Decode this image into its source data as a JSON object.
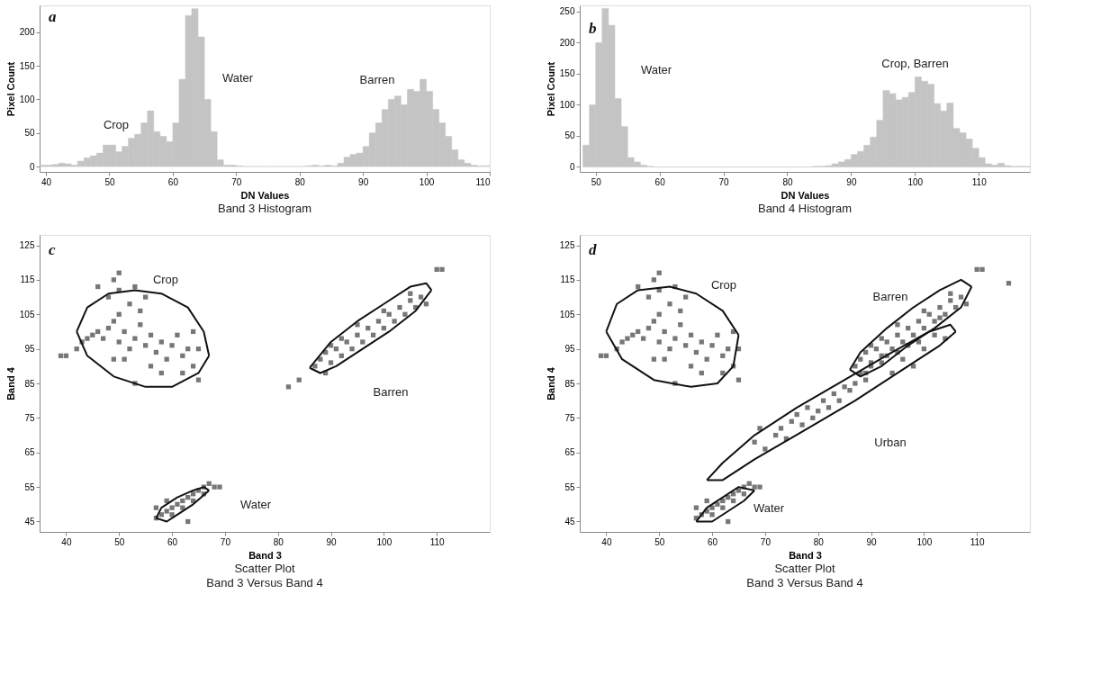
{
  "chart_data": [
    {
      "type": "histogram",
      "title": "Band 3 Histogram",
      "xlabel": "DN Values",
      "ylabel": "Pixel Count",
      "color": "#c4c4c4",
      "grid": false,
      "bins": [
        39,
        40,
        41,
        42,
        43,
        44,
        45,
        46,
        47,
        48,
        49,
        50,
        51,
        52,
        53,
        54,
        55,
        56,
        57,
        58,
        59,
        60,
        61,
        62,
        63,
        64,
        65,
        66,
        67,
        68,
        69,
        70,
        71,
        72,
        73,
        74,
        75,
        76,
        77,
        78,
        79,
        80,
        81,
        82,
        83,
        84,
        85,
        86,
        87,
        88,
        89,
        90,
        91,
        92,
        93,
        94,
        95,
        96,
        97,
        98,
        99,
        100,
        101,
        102,
        103,
        104,
        105,
        106,
        107,
        108,
        109,
        110
      ],
      "values": [
        2,
        2,
        3,
        5,
        4,
        2,
        8,
        13,
        16,
        20,
        32,
        32,
        22,
        30,
        42,
        48,
        65,
        83,
        52,
        45,
        37,
        65,
        130,
        225,
        235,
        193,
        100,
        52,
        10,
        2,
        2,
        1,
        0,
        0,
        0,
        0,
        0,
        0,
        0,
        0,
        0,
        0,
        1,
        2,
        1,
        2,
        1,
        5,
        14,
        18,
        20,
        30,
        50,
        65,
        85,
        100,
        105,
        92,
        115,
        112,
        130,
        112,
        85,
        65,
        45,
        25,
        10,
        5,
        2,
        1,
        1
      ],
      "xlim": [
        39,
        110
      ],
      "ylim": [
        -8,
        240
      ],
      "xticks": [
        40,
        50,
        60,
        70,
        80,
        90,
        100,
        110
      ],
      "yticks": [
        0,
        50,
        100,
        150,
        200
      ],
      "annotations": [
        "a",
        "Crop",
        "Water",
        "Barren"
      ]
    },
    {
      "type": "histogram",
      "title": "Band 4 Histogram",
      "xlabel": "DN Values",
      "ylabel": "Pixel Count",
      "color": "#c4c4c4",
      "grid": false,
      "bins": [
        48,
        49,
        50,
        51,
        52,
        53,
        54,
        55,
        56,
        57,
        58,
        59,
        60,
        61,
        62,
        63,
        64,
        65,
        66,
        67,
        68,
        69,
        70,
        71,
        72,
        73,
        74,
        75,
        76,
        77,
        78,
        79,
        80,
        81,
        82,
        83,
        84,
        85,
        86,
        87,
        88,
        89,
        90,
        91,
        92,
        93,
        94,
        95,
        96,
        97,
        98,
        99,
        100,
        101,
        102,
        103,
        104,
        105,
        106,
        107,
        108,
        109,
        110,
        111,
        112,
        113,
        114,
        115,
        116,
        117,
        118
      ],
      "values": [
        35,
        100,
        200,
        255,
        228,
        110,
        65,
        15,
        8,
        3,
        1,
        0,
        0,
        0,
        0,
        0,
        0,
        0,
        0,
        0,
        0,
        0,
        0,
        0,
        0,
        0,
        0,
        0,
        0,
        0,
        0,
        0,
        0,
        0,
        0,
        0,
        1,
        1,
        2,
        5,
        8,
        12,
        20,
        25,
        35,
        48,
        75,
        123,
        118,
        108,
        112,
        120,
        145,
        138,
        133,
        102,
        90,
        103,
        62,
        55,
        45,
        30,
        15,
        5,
        3,
        6,
        2,
        1,
        1,
        1
      ],
      "xlim": [
        47.5,
        118
      ],
      "ylim": [
        -8,
        260
      ],
      "xticks": [
        50,
        60,
        70,
        80,
        90,
        100,
        110
      ],
      "yticks": [
        0,
        50,
        100,
        150,
        200,
        250
      ],
      "annotations": [
        "b",
        "Water",
        "Crop, Barren"
      ]
    },
    {
      "type": "scatter",
      "title": "Scatter Plot",
      "subtitle": "Band 3 Versus Band 4",
      "xlabel": "Band 3",
      "ylabel": "Band 4",
      "grid": false,
      "xlim": [
        35,
        120
      ],
      "ylim": [
        42,
        128
      ],
      "xticks": [
        40,
        50,
        60,
        70,
        80,
        90,
        100,
        110
      ],
      "yticks": [
        45,
        55,
        65,
        75,
        85,
        95,
        105,
        115,
        125
      ],
      "series": [
        {
          "type": "scatter",
          "marker": "square",
          "color": "#777777",
          "x": [
            39,
            40,
            42,
            43,
            44,
            45,
            46,
            47,
            48,
            49,
            50,
            50,
            51,
            52,
            53,
            54,
            55,
            56,
            57,
            58,
            59,
            60,
            61,
            62,
            63,
            64,
            65,
            64,
            56,
            53,
            51,
            49,
            48,
            50,
            50,
            49,
            52,
            54,
            55,
            46,
            53,
            58,
            62,
            65,
            87,
            88,
            89,
            89,
            90,
            91,
            92,
            93,
            94,
            95,
            96,
            97,
            98,
            99,
            100,
            101,
            102,
            103,
            104,
            105,
            106,
            107,
            108,
            105,
            100,
            95,
            92,
            90,
            82,
            84,
            110,
            111,
            57,
            58,
            59,
            60,
            60,
            61,
            62,
            62,
            63,
            64,
            64,
            65,
            66,
            66,
            67,
            68,
            69,
            63,
            57,
            59
          ],
          "values": [
            93,
            93,
            95,
            97,
            98,
            99,
            100,
            98,
            101,
            103,
            105,
            97,
            100,
            95,
            98,
            102,
            96,
            99,
            94,
            97,
            92,
            96,
            99,
            93,
            95,
            90,
            95,
            100,
            90,
            85,
            92,
            92,
            110,
            112,
            117,
            115,
            108,
            106,
            110,
            113,
            113,
            88,
            88,
            86,
            90,
            92,
            88,
            94,
            91,
            95,
            93,
            97,
            95,
            99,
            97,
            101,
            99,
            103,
            101,
            105,
            103,
            107,
            105,
            109,
            107,
            110,
            108,
            111,
            106,
            102,
            98,
            96,
            84,
            86,
            118,
            118,
            46,
            47,
            48,
            47,
            49,
            50,
            49,
            51,
            52,
            51,
            53,
            54,
            53,
            55,
            56,
            55,
            55,
            45,
            49,
            51
          ]
        },
        {
          "type": "line",
          "color": "#111111",
          "x": [
            42,
            44,
            48,
            53,
            58,
            63,
            66,
            67
          ],
          "values": [
            100,
            107,
            111,
            112,
            111,
            107,
            100,
            93
          ]
        },
        {
          "type": "line",
          "color": "#111111",
          "x": [
            42,
            44,
            49,
            55,
            60,
            65,
            67
          ],
          "values": [
            100,
            93,
            87,
            84,
            84,
            88,
            93
          ]
        },
        {
          "type": "line",
          "color": "#111111",
          "x": [
            86,
            90,
            95,
            100,
            105,
            108,
            109
          ],
          "values": [
            89.5,
            97,
            103,
            108,
            113,
            114,
            112
          ]
        },
        {
          "type": "line",
          "color": "#111111",
          "x": [
            86,
            88,
            91,
            96,
            101,
            106,
            109
          ],
          "values": [
            89.5,
            88,
            90,
            95,
            100,
            106,
            112
          ]
        },
        {
          "type": "line",
          "color": "#111111",
          "x": [
            57,
            58,
            61,
            64,
            66,
            67
          ],
          "values": [
            46,
            49,
            52,
            54,
            55,
            54
          ]
        },
        {
          "type": "line",
          "color": "#111111",
          "x": [
            57,
            59,
            61,
            64,
            67
          ],
          "values": [
            46,
            45,
            47,
            50,
            54
          ]
        }
      ],
      "annotations": [
        "c",
        "Crop",
        "Barren",
        "Water"
      ]
    },
    {
      "type": "scatter",
      "title": "Scatter Plot",
      "subtitle": "Band 3 Versus Band 4",
      "xlabel": "Band 3",
      "ylabel": "Band 4",
      "grid": false,
      "xlim": [
        35,
        120
      ],
      "ylim": [
        42,
        128
      ],
      "xticks": [
        40,
        50,
        60,
        70,
        80,
        90,
        100,
        110
      ],
      "yticks": [
        45,
        55,
        65,
        75,
        85,
        95,
        105,
        115,
        125
      ],
      "series": [
        {
          "type": "scatter",
          "marker": "square",
          "color": "#777777",
          "x": [
            39,
            40,
            42,
            43,
            44,
            45,
            46,
            47,
            48,
            49,
            50,
            50,
            51,
            52,
            53,
            54,
            55,
            56,
            57,
            58,
            59,
            60,
            61,
            62,
            63,
            64,
            65,
            64,
            56,
            53,
            51,
            49,
            48,
            50,
            50,
            49,
            52,
            54,
            55,
            46,
            53,
            58,
            62,
            65,
            87,
            88,
            89,
            89,
            90,
            91,
            92,
            93,
            94,
            95,
            96,
            97,
            98,
            99,
            100,
            101,
            102,
            103,
            104,
            105,
            106,
            107,
            108,
            105,
            100,
            95,
            92,
            90,
            110,
            111,
            116,
            68,
            69,
            70,
            72,
            73,
            74,
            75,
            76,
            77,
            78,
            79,
            80,
            81,
            82,
            83,
            84,
            85,
            86,
            87,
            88,
            89,
            90,
            92,
            93,
            95,
            96,
            97,
            99,
            100,
            102,
            104,
            98,
            94,
            103,
            57,
            58,
            59,
            60,
            60,
            61,
            62,
            62,
            63,
            64,
            64,
            65,
            66,
            66,
            67,
            68,
            69,
            63,
            57,
            59
          ],
          "values": [
            93,
            93,
            95,
            97,
            98,
            99,
            100,
            98,
            101,
            103,
            105,
            97,
            100,
            95,
            98,
            102,
            96,
            99,
            94,
            97,
            92,
            96,
            99,
            93,
            95,
            90,
            95,
            100,
            90,
            85,
            92,
            92,
            110,
            112,
            117,
            115,
            108,
            106,
            110,
            113,
            113,
            88,
            88,
            86,
            90,
            92,
            88,
            94,
            91,
            95,
            93,
            97,
            95,
            99,
            97,
            101,
            99,
            103,
            101,
            105,
            103,
            107,
            105,
            109,
            107,
            110,
            108,
            111,
            106,
            102,
            98,
            96,
            118,
            118,
            114,
            68,
            72,
            66,
            70,
            72,
            69,
            74,
            76,
            73,
            78,
            75,
            77,
            80,
            78,
            82,
            80,
            84,
            83,
            85,
            88,
            86,
            90,
            91,
            93,
            94,
            92,
            96,
            97,
            95,
            99,
            98,
            90,
            88,
            104,
            46,
            47,
            48,
            47,
            49,
            50,
            49,
            51,
            52,
            51,
            53,
            54,
            53,
            55,
            56,
            55,
            55,
            45,
            49,
            51
          ]
        },
        {
          "type": "line",
          "color": "#111111",
          "x": [
            40,
            42,
            46,
            52,
            57,
            62,
            65
          ],
          "values": [
            100,
            108,
            112,
            113,
            111,
            106,
            99
          ]
        },
        {
          "type": "line",
          "color": "#111111",
          "x": [
            40,
            43,
            49,
            56,
            61,
            64,
            65
          ],
          "values": [
            100,
            92,
            86,
            84,
            85,
            90,
            99
          ]
        },
        {
          "type": "line",
          "color": "#111111",
          "x": [
            86,
            88,
            93,
            98,
            103,
            107,
            109
          ],
          "values": [
            89,
            94,
            101,
            107,
            112,
            115,
            113
          ]
        },
        {
          "type": "line",
          "color": "#111111",
          "x": [
            86,
            88,
            92,
            97,
            102,
            107,
            109
          ],
          "values": [
            89,
            87,
            90,
            96,
            101,
            107,
            113
          ]
        },
        {
          "type": "line",
          "color": "#111111",
          "x": [
            59,
            62,
            68,
            76,
            85,
            94,
            101,
            105,
            106
          ],
          "values": [
            57,
            62,
            70,
            78,
            86,
            94,
            100,
            102,
            100
          ]
        },
        {
          "type": "line",
          "color": "#111111",
          "x": [
            59,
            62,
            68,
            77,
            87,
            96,
            103,
            106
          ],
          "values": [
            57,
            57,
            63,
            71,
            80,
            89,
            96,
            100
          ]
        },
        {
          "type": "line",
          "color": "#111111",
          "x": [
            57,
            59,
            62,
            65,
            68
          ],
          "values": [
            45,
            49,
            52,
            55,
            54
          ]
        },
        {
          "type": "line",
          "color": "#111111",
          "x": [
            57,
            60,
            63,
            66,
            68
          ],
          "values": [
            45,
            45,
            48,
            51,
            54
          ]
        }
      ],
      "annotations": [
        "d",
        "Crop",
        "Barren",
        "Urban",
        "Water"
      ]
    }
  ]
}
